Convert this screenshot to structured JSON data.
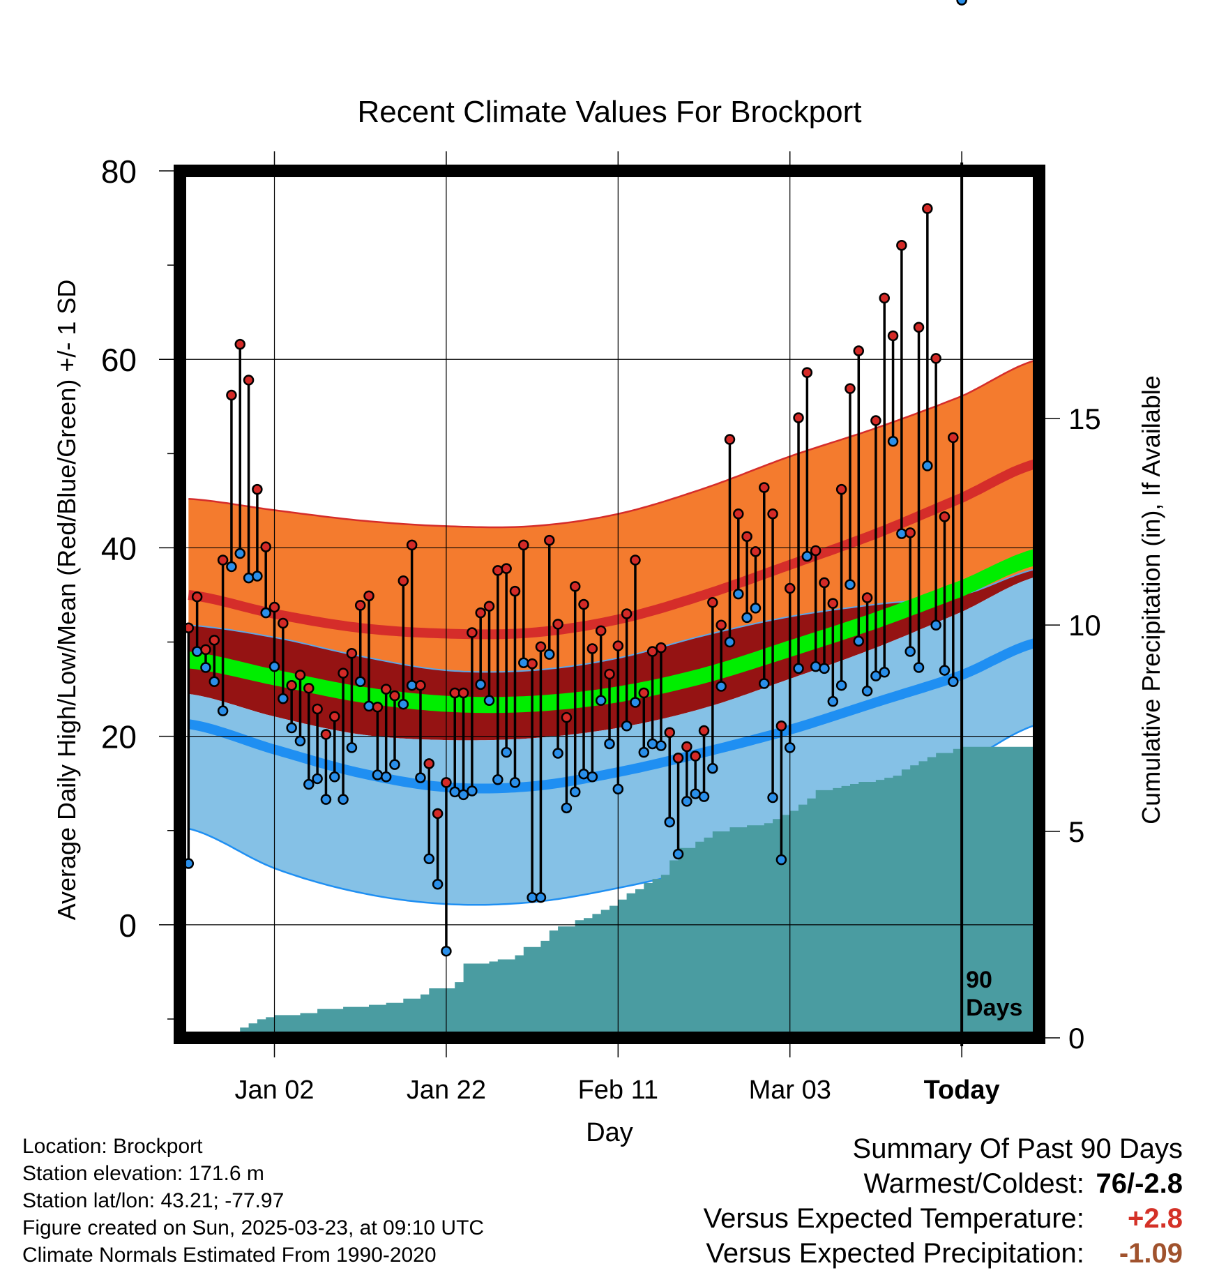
{
  "chart_data": {
    "type": "line",
    "title": "Recent Climate Values For Brockport",
    "xlabel": "Day",
    "ylabel": "Average Daily High/Low/Mean (Red/Blue/Green) +/- 1 SD",
    "y2label": "Cumulative Precipitation (in), If Available",
    "ylim": [
      -12,
      80
    ],
    "y2lim": [
      0,
      21
    ],
    "xlim": [
      -11,
      89
    ],
    "yticks": [
      0,
      20,
      40,
      60,
      80
    ],
    "y2ticks": [
      0,
      5,
      10,
      15
    ],
    "xtick_labels": [
      {
        "day": 0,
        "label": "Jan 02"
      },
      {
        "day": 20,
        "label": "Jan 22"
      },
      {
        "day": 40,
        "label": "Feb 11"
      },
      {
        "day": 60,
        "label": "Mar 03"
      },
      {
        "day": 80,
        "label": "Today"
      }
    ],
    "today_marker": {
      "day": 80,
      "label_line1": "90",
      "label_line2": "Days"
    },
    "grid": true,
    "colors": {
      "high_band": "#f47b2e",
      "high_mean": "#d52d2a",
      "mean_band": "#951313",
      "mean_line": "#00ee00",
      "low_band": "#85c1e6",
      "low_mean": "#1f8ff2",
      "precip": "#4a9ca1",
      "high_marker": "#d42a27",
      "low_marker": "#2a8fea"
    },
    "normals": {
      "x": [
        -10,
        0,
        10,
        20,
        30,
        40,
        50,
        60,
        70,
        80,
        89
      ],
      "high_upper": [
        45.2,
        44.0,
        42.9,
        42.3,
        42.3,
        43.6,
        46.3,
        49.7,
        52.7,
        56.1,
        60.0
      ],
      "high_mean": [
        35.0,
        33.0,
        31.5,
        30.9,
        31.0,
        32.4,
        35.0,
        38.2,
        41.5,
        45.3,
        49.0
      ],
      "low_upper": [
        31.8,
        30.5,
        28.5,
        27.0,
        27.0,
        28.3,
        30.7,
        32.7,
        34.0,
        35.0,
        37.8
      ],
      "mean_upper": [
        29.0,
        27.1,
        25.3,
        24.3,
        24.3,
        25.3,
        27.3,
        30.2,
        33.2,
        36.6,
        40.0
      ],
      "mean_lower": [
        27.2,
        25.4,
        23.6,
        22.6,
        22.6,
        23.6,
        25.6,
        28.4,
        31.4,
        34.8,
        38.2
      ],
      "high_lower": [
        24.5,
        22.1,
        20.2,
        19.6,
        19.8,
        20.9,
        23.0,
        26.1,
        29.4,
        33.2,
        37.0
      ],
      "low_mean": [
        21.3,
        18.6,
        16.1,
        14.6,
        14.7,
        16.2,
        18.3,
        20.7,
        23.6,
        26.5,
        30.0
      ],
      "low_lower": [
        10.2,
        6.0,
        3.4,
        2.2,
        2.4,
        3.9,
        6.1,
        9.4,
        13.0,
        17.0,
        21.3
      ]
    },
    "daily": {
      "day": [
        -10,
        -9,
        -8,
        -7,
        -6,
        -5,
        -4,
        -3,
        -2,
        -1,
        0,
        1,
        2,
        3,
        4,
        5,
        6,
        7,
        8,
        9,
        10,
        11,
        12,
        13,
        14,
        15,
        16,
        17,
        18,
        19,
        20,
        21,
        22,
        23,
        24,
        25,
        26,
        27,
        28,
        29,
        30,
        31,
        32,
        33,
        34,
        35,
        36,
        37,
        38,
        39,
        40,
        41,
        42,
        43,
        44,
        45,
        46,
        47,
        48,
        49,
        50,
        51,
        52,
        53,
        54,
        55,
        56,
        57,
        58,
        59,
        60,
        61,
        62,
        63,
        64,
        65,
        66,
        67,
        68,
        69,
        70,
        71,
        72,
        73,
        74,
        75,
        76,
        77,
        78,
        79,
        80
      ],
      "high": [
        31.5,
        34.8,
        29.2,
        30.2,
        38.7,
        56.2,
        61.6,
        57.8,
        46.2,
        40.1,
        33.7,
        32.0,
        25.4,
        26.5,
        25.1,
        22.9,
        20.2,
        22.1,
        26.7,
        28.8,
        33.9,
        34.9,
        23.1,
        25.0,
        24.3,
        36.5,
        40.3,
        25.4,
        17.1,
        11.8,
        15.1,
        24.6,
        24.6,
        31.0,
        33.1,
        33.8,
        37.6,
        37.8,
        35.4,
        40.3,
        27.7,
        29.5,
        40.8,
        31.9,
        22.0,
        35.9,
        34.0,
        29.3,
        31.2,
        26.6,
        29.6,
        33.0,
        38.7,
        24.6,
        29.0,
        29.4,
        20.4,
        17.7,
        18.9,
        17.9,
        20.6,
        34.2,
        31.8,
        51.5,
        43.6,
        41.2,
        39.6,
        46.4,
        43.6,
        21.1,
        35.7,
        53.8,
        58.6,
        39.7,
        36.3,
        34.1,
        46.2,
        56.9,
        60.9,
        34.7,
        53.5,
        66.5,
        62.5,
        72.1,
        41.6,
        63.4,
        76.0,
        60.1,
        43.3,
        51.7
      ],
      "low": [
        6.5,
        29.0,
        27.3,
        25.8,
        22.7,
        38.0,
        39.4,
        36.8,
        37.0,
        33.1,
        27.4,
        24.0,
        20.9,
        19.5,
        14.9,
        15.5,
        13.3,
        15.7,
        13.3,
        18.8,
        25.8,
        23.2,
        15.9,
        15.7,
        17.0,
        23.4,
        25.4,
        15.6,
        7.0,
        4.3,
        -2.8,
        14.1,
        13.8,
        14.2,
        25.5,
        23.8,
        15.4,
        18.3,
        15.1,
        27.8,
        2.9,
        2.9,
        28.7,
        18.2,
        12.4,
        14.1,
        16.0,
        15.7,
        23.8,
        19.2,
        14.4,
        21.1,
        23.6,
        18.3,
        19.2,
        19.0,
        10.9,
        7.5,
        13.1,
        13.9,
        13.6,
        16.6,
        25.3,
        30.0,
        35.1,
        32.6,
        33.6,
        25.6,
        13.5,
        6.9,
        18.8,
        27.2,
        39.1,
        27.4,
        27.2,
        23.7,
        25.4,
        36.1,
        30.1,
        24.8,
        26.4,
        26.8,
        51.3,
        41.5,
        29.0,
        27.3,
        48.7,
        31.8,
        27.0,
        25.8
      ]
    },
    "precip_cumulative": {
      "day": [
        -10,
        -6,
        -5,
        -4,
        -3,
        -2,
        -1,
        0,
        3,
        5,
        8,
        11,
        13,
        15,
        17,
        18,
        21,
        22,
        25,
        26,
        28,
        29,
        31,
        32,
        33,
        35,
        36,
        37,
        38,
        39,
        40,
        41,
        42,
        43,
        44,
        45,
        46,
        47,
        49,
        50,
        51,
        53,
        55,
        57,
        58,
        59,
        60,
        61,
        62,
        63,
        65,
        66,
        67,
        68,
        70,
        71,
        72,
        73,
        74,
        75,
        76,
        77,
        79,
        80,
        89
      ],
      "value": [
        0,
        0,
        0.1,
        0.25,
        0.35,
        0.45,
        0.5,
        0.55,
        0.6,
        0.7,
        0.75,
        0.8,
        0.85,
        0.95,
        1.05,
        1.2,
        1.35,
        1.8,
        1.85,
        1.9,
        2.0,
        2.2,
        2.35,
        2.6,
        2.7,
        2.85,
        2.9,
        3.0,
        3.1,
        3.2,
        3.35,
        3.5,
        3.6,
        3.75,
        3.85,
        3.95,
        4.3,
        4.6,
        4.75,
        4.85,
        5.0,
        5.1,
        5.15,
        5.2,
        5.3,
        5.4,
        5.5,
        5.65,
        5.8,
        6.0,
        6.05,
        6.1,
        6.15,
        6.2,
        6.25,
        6.3,
        6.35,
        6.5,
        6.6,
        6.7,
        6.8,
        6.9,
        7.0,
        7.05,
        7.1
      ]
    }
  },
  "info": {
    "location": "Location: Brockport",
    "elevation": "Station elevation: 171.6 m",
    "latlon": "Station lat/lon: 43.21; -77.97",
    "created": "Figure created on Sun, 2025-03-23, at 09:10 UTC",
    "normals": "Climate Normals Estimated From 1990-2020"
  },
  "summary": {
    "title": "Summary Of Past 90 Days",
    "warm_cold_label": "Warmest/Coldest:",
    "warm_cold_value": "76/-2.8",
    "temp_label": "Versus Expected Temperature:",
    "temp_value": "+2.8",
    "temp_color": "#d43127",
    "precip_label": "Versus Expected Precipitation:",
    "precip_value": "-1.09",
    "precip_color": "#a0522d"
  }
}
